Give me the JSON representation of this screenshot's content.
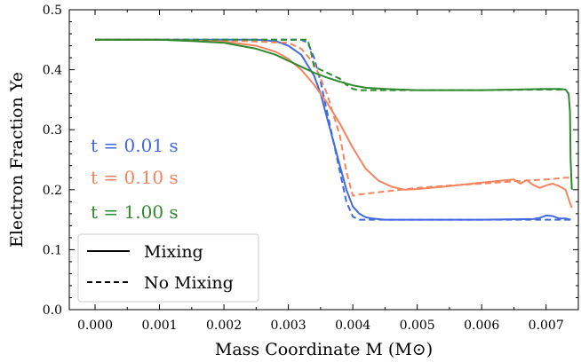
{
  "chart_data": {
    "type": "line",
    "xlabel": "Mass Coordinate M (M⊙)",
    "ylabel": "Electron Fraction Ye",
    "xlim": [
      -0.0004,
      0.0075
    ],
    "ylim": [
      0.0,
      0.5
    ],
    "x_ticks": [
      "0.000",
      "0.001",
      "0.002",
      "0.003",
      "0.004",
      "0.005",
      "0.006",
      "0.007"
    ],
    "y_ticks": [
      "0.0",
      "0.1",
      "0.2",
      "0.3",
      "0.4",
      "0.5"
    ],
    "grid": false,
    "legend": {
      "position": "lower-left",
      "entries": [
        {
          "label": "Mixing",
          "style": "solid"
        },
        {
          "label": "No Mixing",
          "style": "dashed"
        }
      ]
    },
    "annotations": [
      {
        "text": "t = 0.01 s",
        "color": "#4169e1"
      },
      {
        "text": "t = 0.10 s",
        "color": "#f4845f"
      },
      {
        "text": "t = 1.00 s",
        "color": "#2e8b2e"
      }
    ],
    "colors": {
      "t001": "#4169e1",
      "t010": "#f4845f",
      "t100": "#2e8b2e"
    },
    "series": [
      {
        "color_key": "t001",
        "style": "solid",
        "x": [
          0,
          0.001,
          0.002,
          0.0025,
          0.0028,
          0.003,
          0.0032,
          0.0034,
          0.0035,
          0.0036,
          0.0037,
          0.0038,
          0.0039,
          0.004,
          0.0041,
          0.0042,
          0.0043,
          0.0045,
          0.005,
          0.006,
          0.0068,
          0.0069,
          0.007,
          0.0071,
          0.0072,
          0.0073,
          0.00738
        ],
        "y": [
          0.45,
          0.45,
          0.45,
          0.45,
          0.448,
          0.44,
          0.425,
          0.39,
          0.36,
          0.32,
          0.28,
          0.24,
          0.2,
          0.172,
          0.16,
          0.154,
          0.152,
          0.15,
          0.15,
          0.15,
          0.151,
          0.153,
          0.157,
          0.156,
          0.152,
          0.152,
          0.15
        ]
      },
      {
        "color_key": "t001",
        "style": "dashed",
        "x": [
          0,
          0.001,
          0.002,
          0.0032,
          0.0033,
          0.0034,
          0.0035,
          0.0036,
          0.0037,
          0.0038,
          0.0039,
          0.004,
          0.0041,
          0.005,
          0.006,
          0.007,
          0.00738
        ],
        "y": [
          0.45,
          0.45,
          0.45,
          0.45,
          0.445,
          0.42,
          0.38,
          0.33,
          0.28,
          0.23,
          0.18,
          0.155,
          0.15,
          0.15,
          0.15,
          0.15,
          0.15
        ]
      },
      {
        "color_key": "t010",
        "style": "solid",
        "x": [
          0,
          0.001,
          0.002,
          0.0025,
          0.0028,
          0.003,
          0.0032,
          0.0034,
          0.0036,
          0.0038,
          0.004,
          0.0042,
          0.0044,
          0.0046,
          0.0048,
          0.005,
          0.0055,
          0.006,
          0.0065,
          0.0066,
          0.0067,
          0.0068,
          0.0069,
          0.007,
          0.0071,
          0.0072,
          0.0073,
          0.00738,
          0.0074
        ],
        "y": [
          0.45,
          0.45,
          0.447,
          0.44,
          0.43,
          0.418,
          0.4,
          0.375,
          0.345,
          0.31,
          0.27,
          0.235,
          0.215,
          0.205,
          0.2,
          0.201,
          0.206,
          0.212,
          0.217,
          0.21,
          0.216,
          0.208,
          0.203,
          0.207,
          0.21,
          0.206,
          0.2,
          0.175,
          0.17
        ]
      },
      {
        "color_key": "t010",
        "style": "dashed",
        "x": [
          0,
          0.001,
          0.002,
          0.003,
          0.0032,
          0.0034,
          0.0036,
          0.0038,
          0.0039,
          0.004,
          0.0041,
          0.0045,
          0.005,
          0.0055,
          0.006,
          0.0065,
          0.007,
          0.0073,
          0.00738
        ],
        "y": [
          0.45,
          0.45,
          0.449,
          0.445,
          0.435,
          0.41,
          0.36,
          0.29,
          0.23,
          0.19,
          0.192,
          0.197,
          0.203,
          0.207,
          0.21,
          0.214,
          0.217,
          0.22,
          0.22
        ]
      },
      {
        "color_key": "t100",
        "style": "solid",
        "x": [
          0,
          0.001,
          0.0015,
          0.002,
          0.0025,
          0.0028,
          0.003,
          0.0032,
          0.0034,
          0.0036,
          0.0038,
          0.004,
          0.0042,
          0.0045,
          0.005,
          0.006,
          0.007,
          0.0072,
          0.0073,
          0.00735,
          0.00737,
          0.00738,
          0.0074
        ],
        "y": [
          0.45,
          0.45,
          0.448,
          0.445,
          0.435,
          0.425,
          0.415,
          0.405,
          0.395,
          0.387,
          0.38,
          0.374,
          0.37,
          0.368,
          0.366,
          0.366,
          0.368,
          0.368,
          0.367,
          0.36,
          0.33,
          0.25,
          0.2
        ]
      },
      {
        "color_key": "t100",
        "style": "dashed",
        "x": [
          0,
          0.001,
          0.002,
          0.003,
          0.0033,
          0.00335,
          0.0034,
          0.0035,
          0.0036,
          0.0037,
          0.0038,
          0.0039,
          0.004,
          0.0041,
          0.005,
          0.006,
          0.007,
          0.0073
        ],
        "y": [
          0.45,
          0.45,
          0.45,
          0.45,
          0.45,
          0.43,
          0.405,
          0.4,
          0.395,
          0.39,
          0.385,
          0.375,
          0.368,
          0.366,
          0.366,
          0.366,
          0.367,
          0.367
        ]
      }
    ]
  }
}
